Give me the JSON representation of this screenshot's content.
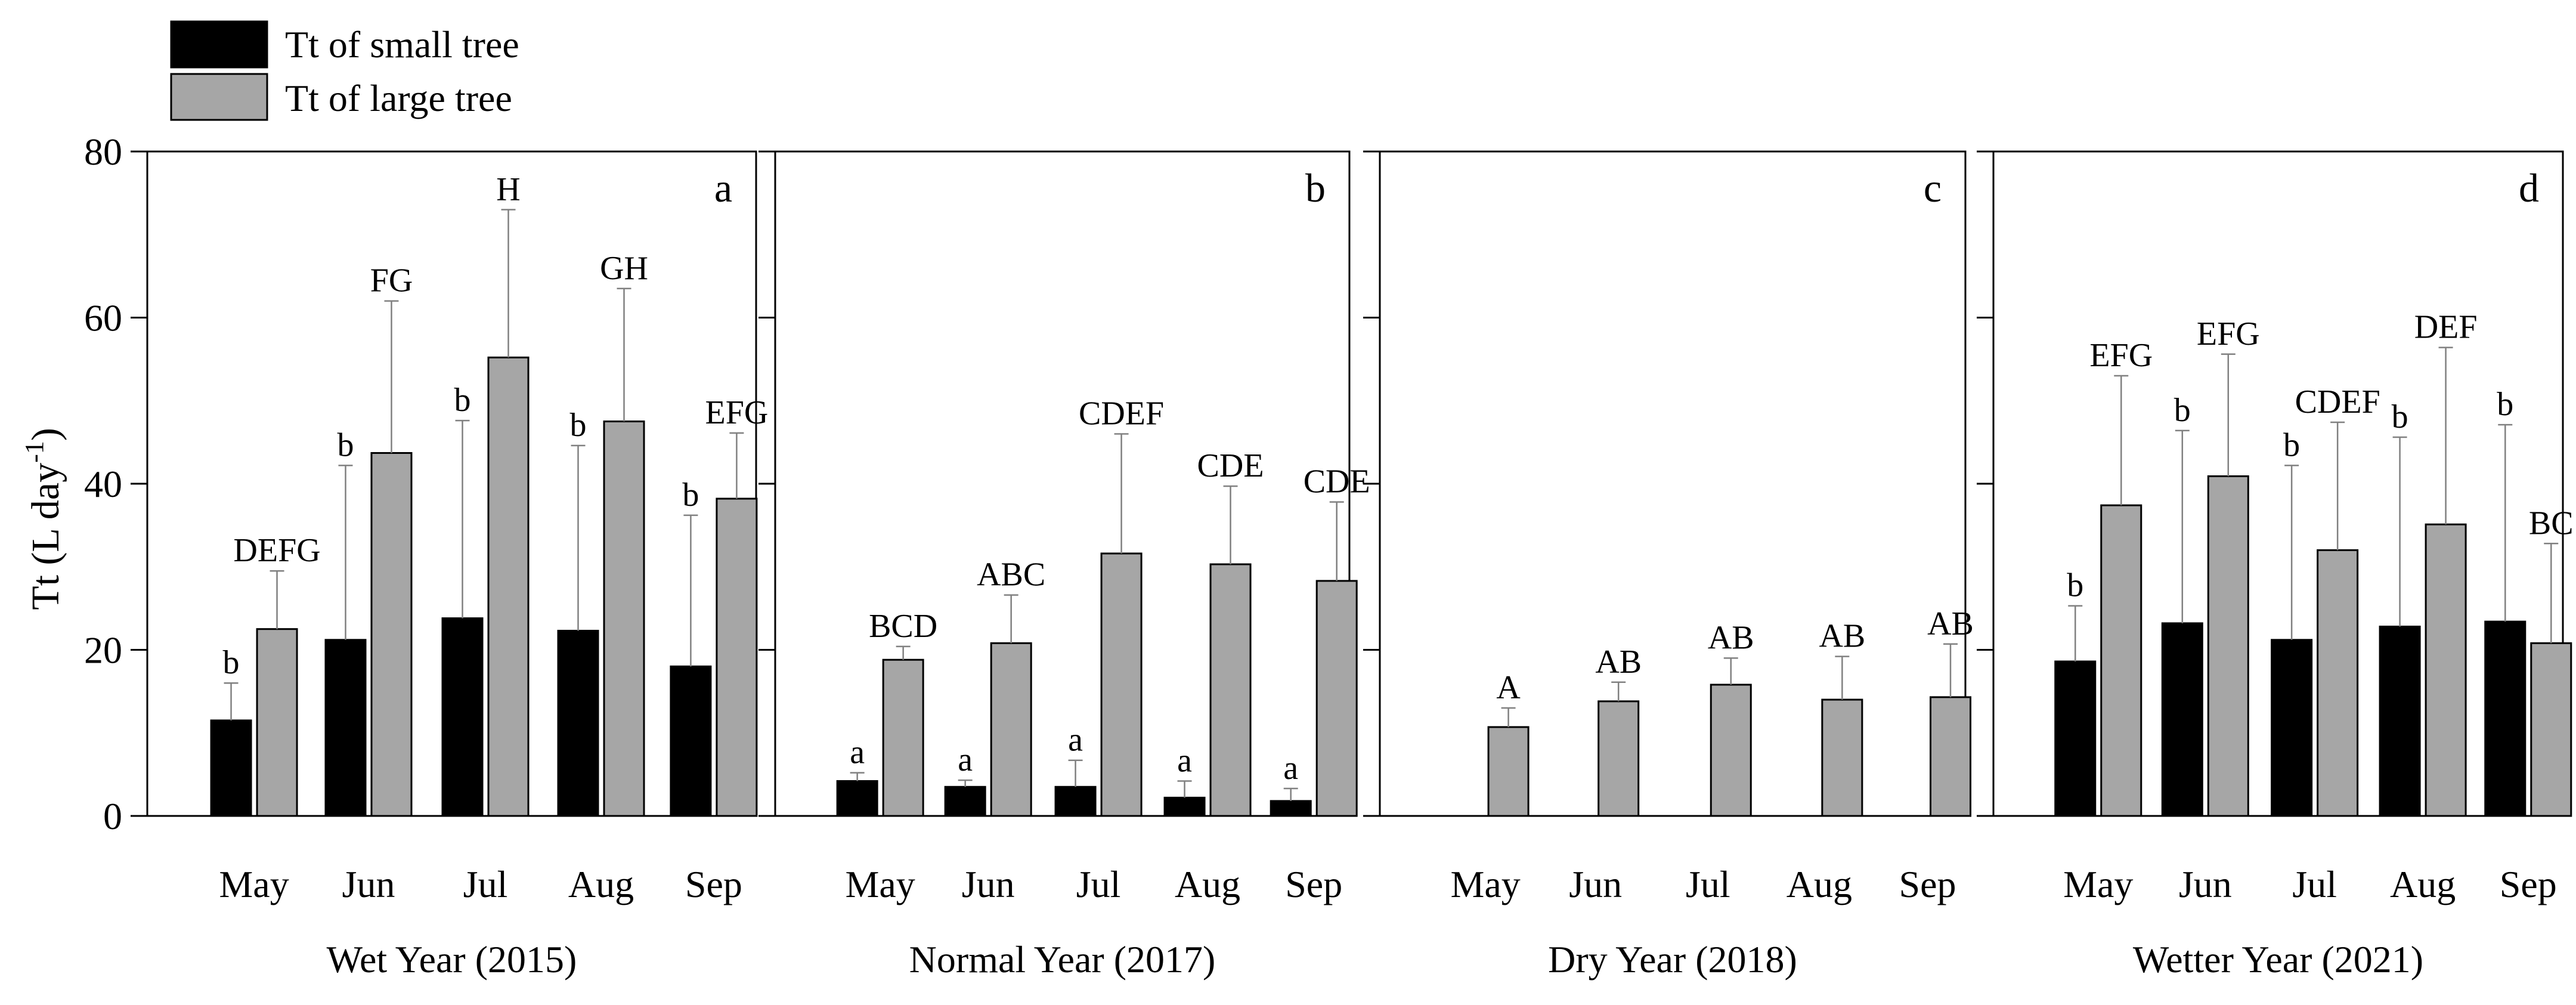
{
  "legend": {
    "items": [
      {
        "label": "Tt of small tree",
        "color": "#000000"
      },
      {
        "label": "Tt of large tree",
        "color": "#a6a6a6"
      }
    ]
  },
  "y_axis_label": {
    "main": "Tt (L day",
    "superscript": "-1",
    "close": ")"
  },
  "colors": {
    "small": "#000000",
    "large": "#a6a6a6",
    "axis": "#000000",
    "error_bar": "#808080"
  },
  "chart_data": [
    {
      "type": "bar",
      "panel_letter": "a",
      "xlabel": "Wet Year (2015)",
      "ylabel": "Tt (L day-1)",
      "ylim": [
        0,
        80
      ],
      "yticks": [
        0,
        20,
        40,
        60,
        80
      ],
      "categories": [
        "May",
        "Jun",
        "Jul",
        "Aug",
        "Sep"
      ],
      "series": [
        {
          "name": "Tt of small tree",
          "values": [
            11.5,
            21.2,
            23.8,
            22.3,
            18.0
          ],
          "errors": [
            4.5,
            21.0,
            23.8,
            22.3,
            18.2
          ],
          "letters": [
            "b",
            "b",
            "b",
            "b",
            "b"
          ]
        },
        {
          "name": "Tt of large tree",
          "values": [
            22.5,
            43.7,
            55.2,
            47.5,
            38.2
          ],
          "errors": [
            7.0,
            18.3,
            17.8,
            16.0,
            7.9
          ],
          "letters": [
            "DEFG",
            "FG",
            "H",
            "GH",
            "EFG"
          ]
        }
      ]
    },
    {
      "type": "bar",
      "panel_letter": "b",
      "xlabel": "Normal Year (2017)",
      "ylabel": "Tt (L day-1)",
      "ylim": [
        0,
        80
      ],
      "yticks": [
        0,
        20,
        40,
        60,
        80
      ],
      "categories": [
        "May",
        "Jun",
        "Jul",
        "Aug",
        "Sep"
      ],
      "series": [
        {
          "name": "Tt of small tree",
          "values": [
            4.2,
            3.5,
            3.5,
            2.2,
            1.8
          ],
          "errors": [
            1.0,
            0.8,
            3.2,
            2.0,
            1.5
          ],
          "letters": [
            "a",
            "a",
            "a",
            "a",
            "a"
          ]
        },
        {
          "name": "Tt of large tree",
          "values": [
            18.8,
            20.8,
            31.6,
            30.3,
            28.3
          ],
          "errors": [
            1.6,
            5.8,
            14.4,
            9.4,
            9.5
          ],
          "letters": [
            "BCD",
            "ABC",
            "CDEF",
            "CDE",
            "CDE"
          ]
        }
      ]
    },
    {
      "type": "bar",
      "panel_letter": "c",
      "xlabel": "Dry Year (2018)",
      "ylabel": "Tt (L day-1)",
      "ylim": [
        0,
        80
      ],
      "yticks": [
        0,
        20,
        40,
        60,
        80
      ],
      "categories": [
        "May",
        "Jun",
        "Jul",
        "Aug",
        "Sep"
      ],
      "series": [
        {
          "name": "Tt of small tree",
          "values": [
            0,
            0,
            0,
            0,
            0
          ],
          "errors": [
            0,
            0,
            0,
            0,
            0
          ],
          "letters": [
            "",
            "",
            "",
            "",
            ""
          ]
        },
        {
          "name": "Tt of large tree",
          "values": [
            10.7,
            13.8,
            15.8,
            14.0,
            14.3
          ],
          "errors": [
            2.3,
            2.3,
            3.2,
            5.2,
            6.4
          ],
          "letters": [
            "A",
            "AB",
            "AB",
            "AB",
            "AB"
          ]
        }
      ]
    },
    {
      "type": "bar",
      "panel_letter": "d",
      "xlabel": "Wetter Year (2021)",
      "ylabel": "Tt (L day-1)",
      "ylim": [
        0,
        80
      ],
      "yticks": [
        0,
        20,
        40,
        60,
        80
      ],
      "categories": [
        "May",
        "Jun",
        "Jul",
        "Aug",
        "Sep"
      ],
      "series": [
        {
          "name": "Tt of small tree",
          "values": [
            18.6,
            23.2,
            21.2,
            22.8,
            23.4
          ],
          "errors": [
            6.7,
            23.2,
            21.0,
            22.8,
            23.7
          ],
          "letters": [
            "b",
            "b",
            "b",
            "b",
            "b"
          ]
        },
        {
          "name": "Tt of large tree",
          "values": [
            37.4,
            40.9,
            32.0,
            35.1,
            20.8
          ],
          "errors": [
            15.6,
            14.7,
            15.4,
            21.3,
            12.0
          ],
          "letters": [
            "EFG",
            "EFG",
            "CDEF",
            "DEF",
            "BC"
          ]
        }
      ]
    }
  ]
}
